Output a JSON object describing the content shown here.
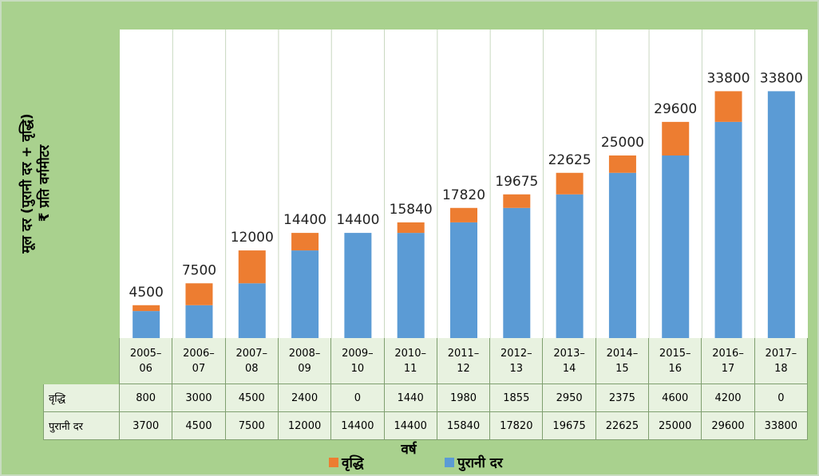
{
  "chart_data": {
    "type": "stacked-bar",
    "y_label": [
      "मूल दर (पुरानी दर + वृद्धि)",
      "₹ प्रति वर्गमीटर"
    ],
    "x_label": "वर्ष",
    "categories": [
      "2005–06",
      "2006–07",
      "2007–08",
      "2008–09",
      "2009–10",
      "2010–11",
      "2011–12",
      "2012–13",
      "2013–14",
      "2014–15",
      "2015–16",
      "2016–17",
      "2017–18"
    ],
    "series": [
      {
        "name": "वृद्धि",
        "color": "#ed7d31",
        "values": [
          800,
          3000,
          4500,
          2400,
          0,
          1440,
          1980,
          1855,
          2950,
          2375,
          4600,
          4200,
          0
        ]
      },
      {
        "name": "पुरानी दर",
        "color": "#5b9bd5",
        "values": [
          3700,
          4500,
          7500,
          12000,
          14400,
          14400,
          15840,
          17820,
          19675,
          22625,
          25000,
          29600,
          33800
        ]
      }
    ],
    "totals": [
      4500,
      7500,
      12000,
      14400,
      14400,
      15840,
      17820,
      19675,
      22625,
      25000,
      29600,
      33800,
      33800
    ],
    "legend": "bottom"
  }
}
